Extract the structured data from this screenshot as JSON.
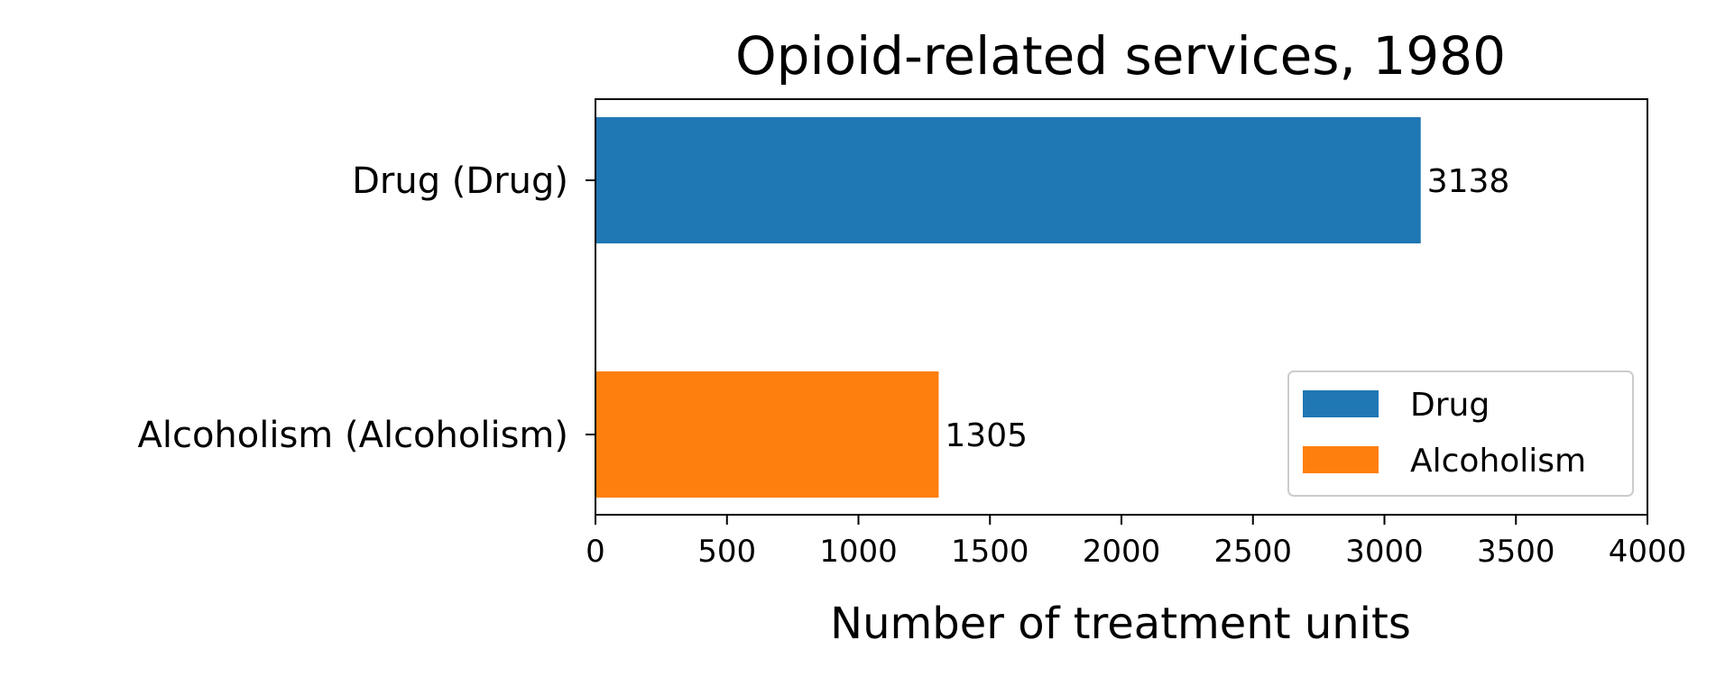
{
  "chart_data": {
    "type": "bar",
    "orientation": "horizontal",
    "title": "Opioid-related services, 1980",
    "xlabel": "Number of treatment units",
    "ylabel": "",
    "xlim": [
      0,
      4000
    ],
    "xticks": [
      0,
      500,
      1000,
      1500,
      2000,
      2500,
      3000,
      3500,
      4000
    ],
    "categories": [
      "Drug (Drug)",
      "Alcoholism (Alcoholism)"
    ],
    "values": [
      3138,
      1305
    ],
    "data_labels": [
      "3138",
      "1305"
    ],
    "colors": [
      "#1f77b4",
      "#ff7f0e"
    ],
    "grid": false,
    "legend": {
      "position": "bottom-right",
      "entries": [
        {
          "label": "Drug",
          "color": "#1f77b4"
        },
        {
          "label": "Alcoholism",
          "color": "#ff7f0e"
        }
      ]
    }
  }
}
